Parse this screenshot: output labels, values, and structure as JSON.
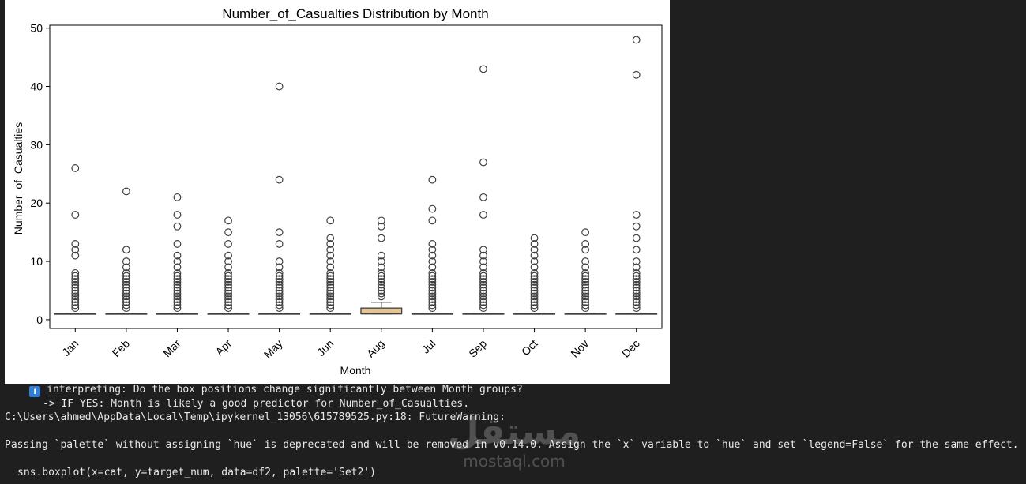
{
  "output": {
    "info_line": " interpreting: Do the box positions change significantly between Month groups?",
    "info_icon": "info-icon",
    "yes_line": "-> IF YES: Month is likely a good predictor for Number_of_Casualties.",
    "warning_line": "C:\\Users\\ahmed\\AppData\\Local\\Temp\\ipykernel_13056\\615789525.py:18: FutureWarning:",
    "deprecation_line": "Passing `palette` without assigning `hue` is deprecated and will be removed in v0.14.0. Assign the `x` variable to `hue` and set `legend=False` for the same effect.",
    "code_line": "sns.boxplot(x=cat, y=target_num, data=df2, palette='Set2')"
  },
  "watermark": {
    "arabic": "مستقل",
    "latin": "mostaql.com"
  },
  "chart_data": {
    "type": "boxplot",
    "title": "Number_of_Casualties Distribution by Month",
    "xlabel": "Month",
    "ylabel": "Number_of_Casualties",
    "ylim": [
      -1.5,
      50.5
    ],
    "yticks": [
      0,
      10,
      20,
      30,
      40,
      50
    ],
    "grid": false,
    "categories": [
      "Jan",
      "Feb",
      "Mar",
      "Apr",
      "May",
      "Jun",
      "Aug",
      "Jul",
      "Sep",
      "Oct",
      "Nov",
      "Dec"
    ],
    "box_colors": [
      "#66c2a5",
      "#fc8d62",
      "#8da0cb",
      "#e78ac3",
      "#a6d854",
      "#ffd92f",
      "#e5c494",
      "#b3b3b3",
      "#66c2a5",
      "#fc8d62",
      "#8da0cb",
      "#e78ac3"
    ],
    "boxes": [
      {
        "q1": 1,
        "median": 1,
        "q3": 1,
        "whisker_low": 1,
        "whisker_high": 1,
        "outliers": [
          2,
          2.5,
          3,
          3.5,
          4,
          4.5,
          5,
          5.5,
          6,
          6.5,
          7,
          7.5,
          8,
          11,
          12,
          13,
          18,
          26
        ]
      },
      {
        "q1": 1,
        "median": 1,
        "q3": 1,
        "whisker_low": 1,
        "whisker_high": 1,
        "outliers": [
          2,
          2.5,
          3,
          3.5,
          4,
          4.5,
          5,
          5.5,
          6,
          6.5,
          7,
          7.5,
          8,
          9,
          10,
          12,
          22
        ]
      },
      {
        "q1": 1,
        "median": 1,
        "q3": 1,
        "whisker_low": 1,
        "whisker_high": 1,
        "outliers": [
          2,
          2.5,
          3,
          3.5,
          4,
          4.5,
          5,
          5.5,
          6,
          6.5,
          7,
          7.5,
          8,
          9,
          10,
          11,
          13,
          16,
          18,
          21
        ]
      },
      {
        "q1": 1,
        "median": 1,
        "q3": 1,
        "whisker_low": 1,
        "whisker_high": 1,
        "outliers": [
          2,
          2.5,
          3,
          3.5,
          4,
          4.5,
          5,
          5.5,
          6,
          6.5,
          7,
          7.5,
          8,
          9,
          10,
          11,
          13,
          15,
          17
        ]
      },
      {
        "q1": 1,
        "median": 1,
        "q3": 1,
        "whisker_low": 1,
        "whisker_high": 1,
        "outliers": [
          2,
          2.5,
          3,
          3.5,
          4,
          4.5,
          5,
          5.5,
          6,
          6.5,
          7,
          7.5,
          8,
          9,
          10,
          13,
          15,
          24,
          40
        ]
      },
      {
        "q1": 1,
        "median": 1,
        "q3": 1,
        "whisker_low": 1,
        "whisker_high": 1,
        "outliers": [
          2,
          2.5,
          3,
          3.5,
          4,
          4.5,
          5,
          5.5,
          6,
          6.5,
          7,
          7.5,
          8,
          9,
          10,
          11,
          12,
          13,
          14,
          17
        ]
      },
      {
        "q1": 1,
        "median": 1,
        "q3": 2,
        "whisker_low": 1,
        "whisker_high": 3,
        "outliers": [
          4,
          4.5,
          5,
          5.5,
          6,
          6.5,
          7,
          7.5,
          8,
          9,
          10,
          11,
          14,
          16,
          17
        ]
      },
      {
        "q1": 1,
        "median": 1,
        "q3": 1,
        "whisker_low": 1,
        "whisker_high": 1,
        "outliers": [
          2,
          2.5,
          3,
          3.5,
          4,
          4.5,
          5,
          5.5,
          6,
          6.5,
          7,
          7.5,
          8,
          9,
          10,
          11,
          12,
          13,
          17,
          19,
          24
        ]
      },
      {
        "q1": 1,
        "median": 1,
        "q3": 1,
        "whisker_low": 1,
        "whisker_high": 1,
        "outliers": [
          2,
          2.5,
          3,
          3.5,
          4,
          4.5,
          5,
          5.5,
          6,
          6.5,
          7,
          7.5,
          8,
          9,
          10,
          11,
          12,
          18,
          21,
          27,
          43
        ]
      },
      {
        "q1": 1,
        "median": 1,
        "q3": 1,
        "whisker_low": 1,
        "whisker_high": 1,
        "outliers": [
          2,
          2.5,
          3,
          3.5,
          4,
          4.5,
          5,
          5.5,
          6,
          6.5,
          7,
          7.5,
          8,
          9,
          10,
          11,
          12,
          13,
          14
        ]
      },
      {
        "q1": 1,
        "median": 1,
        "q3": 1,
        "whisker_low": 1,
        "whisker_high": 1,
        "outliers": [
          2,
          2.5,
          3,
          3.5,
          4,
          4.5,
          5,
          5.5,
          6,
          6.5,
          7,
          7.5,
          8,
          9,
          10,
          12,
          13,
          15
        ]
      },
      {
        "q1": 1,
        "median": 1,
        "q3": 1,
        "whisker_low": 1,
        "whisker_high": 1,
        "outliers": [
          2,
          2.5,
          3,
          3.5,
          4,
          4.5,
          5,
          5.5,
          6,
          6.5,
          7,
          7.5,
          8,
          9,
          10,
          12,
          14,
          16,
          18,
          42,
          48
        ]
      }
    ]
  }
}
